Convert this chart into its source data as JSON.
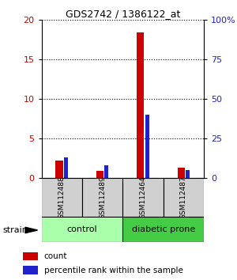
{
  "title": "GDS2742 / 1386122_at",
  "samples": [
    "GSM112488",
    "GSM112489",
    "GSM112464",
    "GSM112487"
  ],
  "count_values": [
    2.2,
    0.9,
    18.4,
    1.3
  ],
  "percentile_values": [
    13,
    8,
    40,
    5
  ],
  "left_ylim": [
    0,
    20
  ],
  "right_ylim": [
    0,
    100
  ],
  "left_yticks": [
    0,
    5,
    10,
    15,
    20
  ],
  "right_yticks": [
    0,
    25,
    50,
    75,
    100
  ],
  "right_yticklabels": [
    "0",
    "25",
    "50",
    "75",
    "100%"
  ],
  "count_color": "#cc0000",
  "percentile_color": "#2222cc",
  "group_control_color": "#aaffaa",
  "group_diabetic_color": "#44cc44",
  "background_color": "#ffffff",
  "legend_labels": [
    "count",
    "percentile rank within the sample"
  ]
}
